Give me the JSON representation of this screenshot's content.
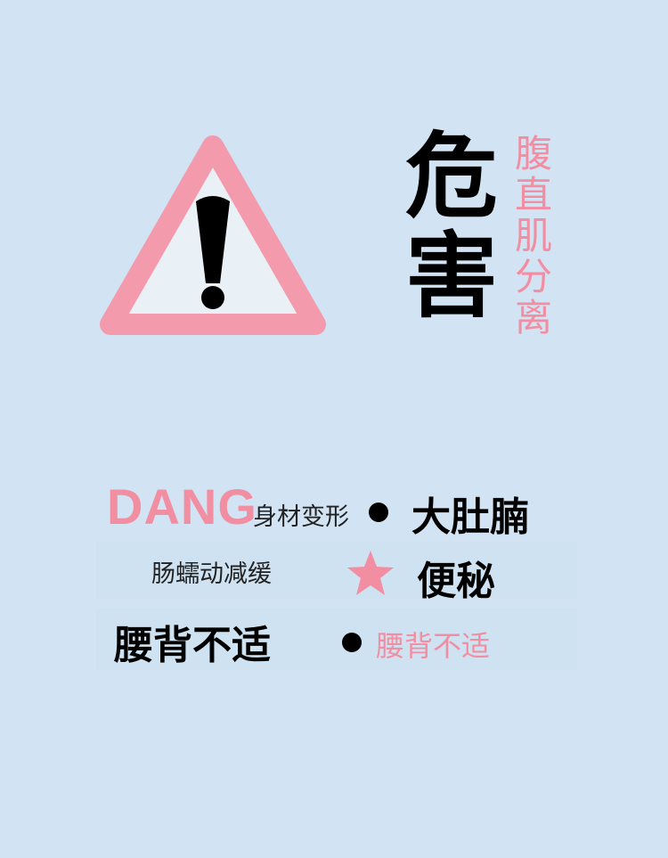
{
  "header": {
    "title_chars": [
      "危",
      "害"
    ],
    "subtitle_chars": [
      "腹",
      "直",
      "肌",
      "分",
      "离"
    ],
    "warning_icon": "warning-triangle-icon"
  },
  "list": {
    "row1": {
      "prefix": "DANG",
      "label": "身材变形",
      "emphasis": "大肚腩"
    },
    "row2": {
      "label": "肠蠕动减缓",
      "emphasis": "便秘"
    },
    "row3": {
      "emphasis": "腰背不适",
      "label": "腰背不适"
    }
  },
  "colors": {
    "background": "#d2e4f3",
    "accent_pink": "#f28ea2",
    "text": "#000000"
  }
}
